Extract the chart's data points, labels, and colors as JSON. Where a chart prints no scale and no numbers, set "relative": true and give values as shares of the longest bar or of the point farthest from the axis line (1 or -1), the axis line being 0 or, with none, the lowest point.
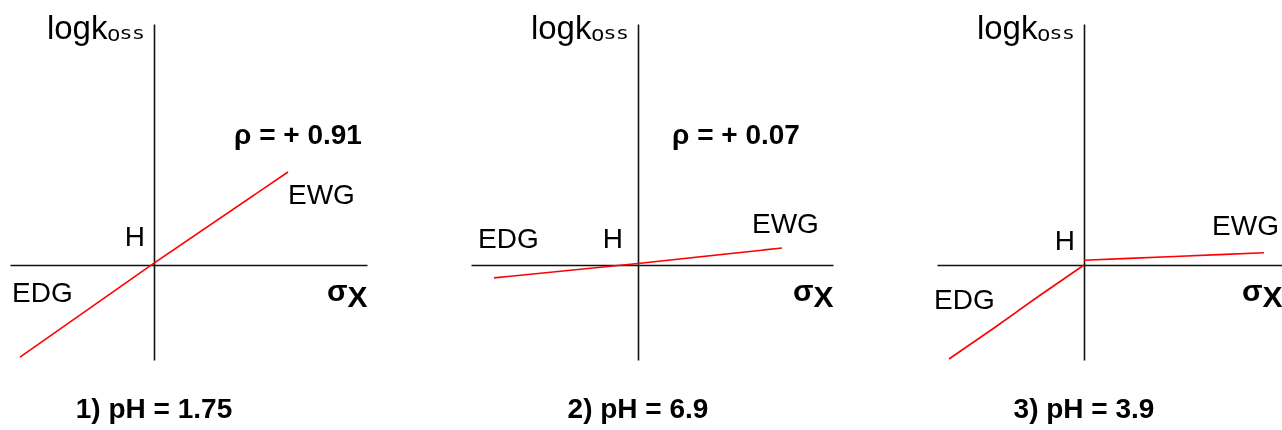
{
  "chart_data": [
    {
      "type": "line",
      "title": "1) pH = 1.75",
      "xlabel": "σ$_{X}$",
      "ylabel": "logkₒₛₛ",
      "relative": true,
      "categories": [
        null,
        null,
        null
      ],
      "series": [
        {
          "color": "#ff0000",
          "values": [
            -0.99,
            0.02,
            1
          ]
        }
      ],
      "annotations": [
        "ρ = + 0.91",
        "EWG",
        "H",
        "EDG"
      ]
    },
    {
      "type": "line",
      "title": "2) pH = 6.9",
      "xlabel": "σ$_{X}$",
      "ylabel": "logkₒₛₛ",
      "relative": true,
      "categories": [
        null,
        null,
        null
      ],
      "series": [
        {
          "color": "#ff0000",
          "values": [
            -0.76,
            0.09,
            1
          ]
        }
      ],
      "annotations": [
        "ρ = + 0.07",
        "EWG",
        "H",
        "EDG"
      ]
    },
    {
      "type": "line",
      "title": "3) pH = 3.9",
      "xlabel": "σ$_{X}$",
      "ylabel": "logkₒₛₛ",
      "relative": true,
      "categories": [
        null,
        null,
        null,
        null,
        null,
        null,
        null,
        null
      ],
      "series": [
        {
          "color": "#ff0000",
          "values": [
            -1,
            -0.67,
            -0.33,
            0,
            null,
            null,
            null,
            null
          ]
        },
        {
          "color": "#ff0000",
          "values": [
            null,
            null,
            null,
            0.05,
            0.07,
            0.09,
            0.11,
            0.13
          ]
        }
      ],
      "annotations": [
        "EWG",
        "H",
        "EDG"
      ]
    }
  ]
}
